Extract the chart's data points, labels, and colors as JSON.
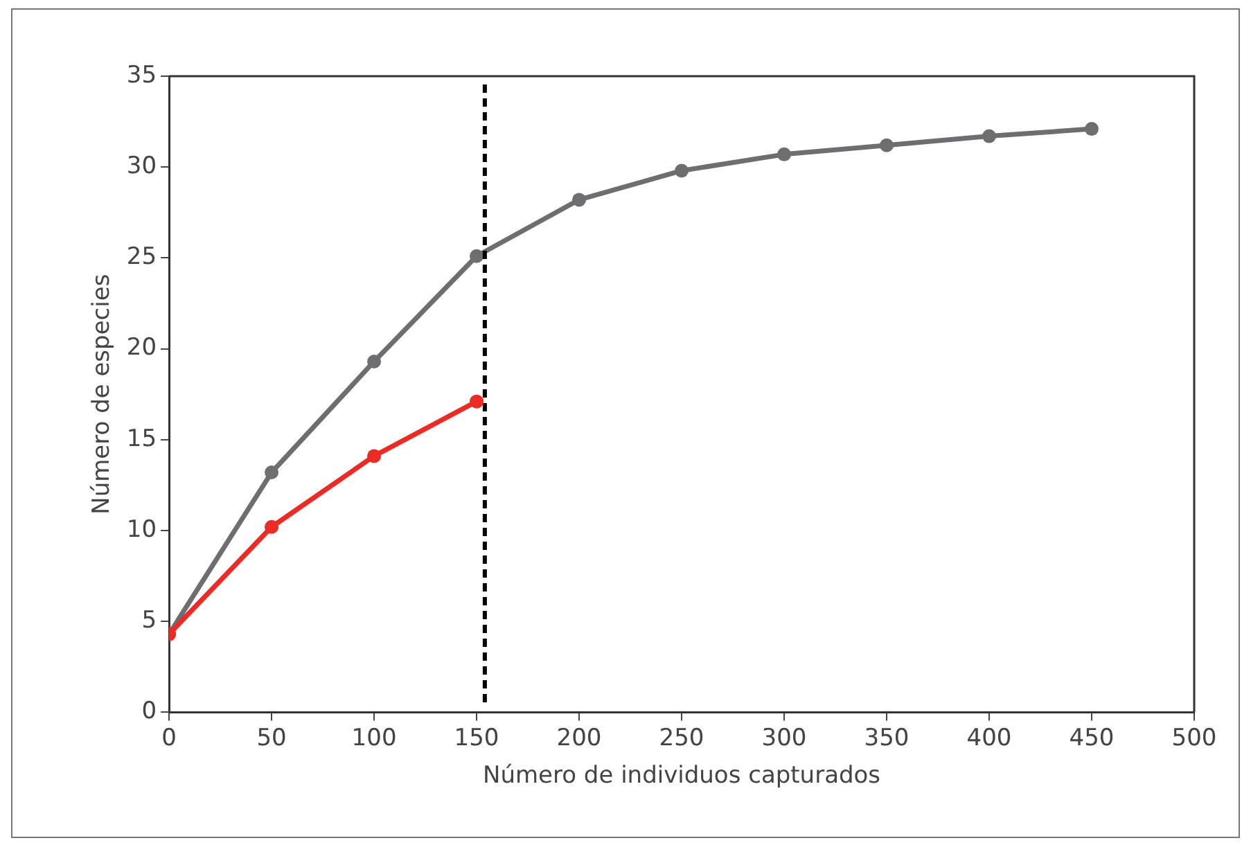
{
  "chart_data": {
    "type": "line",
    "xlabel": "Número de individuos capturados",
    "ylabel": "Número de especies",
    "xlim": [
      0,
      500
    ],
    "xticks": [
      0,
      50,
      100,
      150,
      200,
      250,
      300,
      350,
      400,
      450,
      500
    ],
    "ylim": [
      0,
      35
    ],
    "yticks": [
      0,
      5,
      10,
      15,
      20,
      25,
      30,
      35
    ],
    "grid": false,
    "legend": false,
    "marker": "circle",
    "line_style": "solid",
    "series": [
      {
        "color": "#6d6e71",
        "x": [
          0,
          50,
          100,
          150,
          200,
          250,
          300,
          350,
          400,
          450
        ],
        "values": [
          4.3,
          13.2,
          19.3,
          25.1,
          28.2,
          29.8,
          30.7,
          31.2,
          31.7,
          32.1
        ]
      },
      {
        "color": "#ee2a24",
        "x": [
          0,
          50,
          100,
          150
        ],
        "values": [
          4.3,
          10.2,
          14.1,
          17.1
        ]
      }
    ],
    "ref_lines": [
      {
        "axis": "x",
        "value": 154,
        "color": "#000000",
        "line_style": "dashed"
      }
    ]
  }
}
